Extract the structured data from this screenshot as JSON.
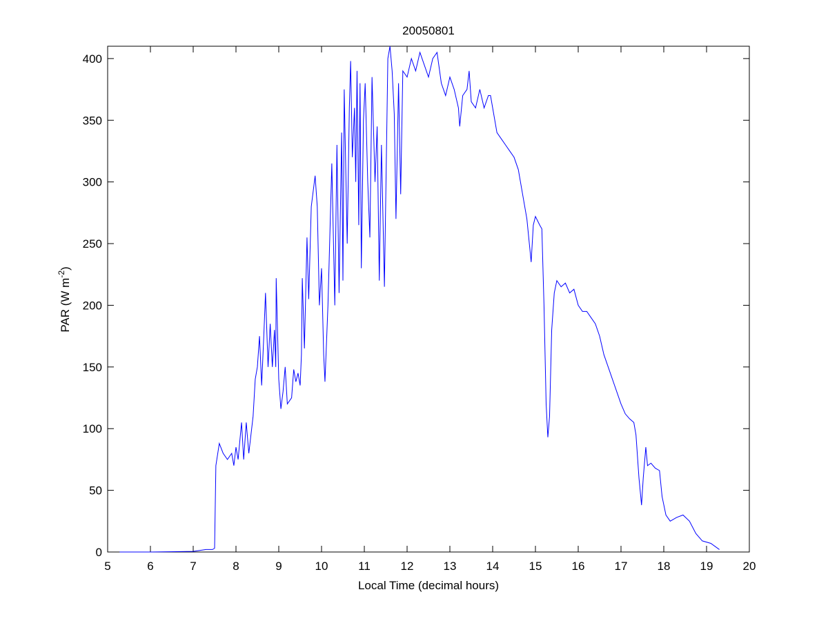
{
  "chart_data": {
    "type": "line",
    "title": "20050801",
    "xlabel": "Local Time (decimal hours)",
    "ylabel": [
      "PAR (W m",
      "-2",
      ")"
    ],
    "xlim": [
      5,
      20
    ],
    "xticks": [
      5,
      6,
      7,
      8,
      9,
      10,
      11,
      12,
      13,
      14,
      15,
      16,
      17,
      18,
      19,
      20
    ],
    "ylim": [
      0,
      410
    ],
    "yticks": [
      0,
      50,
      100,
      150,
      200,
      250,
      300,
      350,
      400
    ],
    "grid": false,
    "series": [
      {
        "color": "#0000ff",
        "x": [
          5.28,
          6.0,
          7.0,
          7.3,
          7.45,
          7.5,
          7.53,
          7.61,
          7.7,
          7.8,
          7.9,
          7.95,
          8.0,
          8.05,
          8.13,
          8.18,
          8.24,
          8.3,
          8.4,
          8.45,
          8.5,
          8.55,
          8.6,
          8.65,
          8.69,
          8.75,
          8.8,
          8.85,
          8.9,
          8.93,
          8.94,
          9.0,
          9.05,
          9.1,
          9.15,
          9.2,
          9.3,
          9.35,
          9.4,
          9.45,
          9.5,
          9.53,
          9.55,
          9.6,
          9.66,
          9.7,
          9.76,
          9.85,
          9.9,
          9.95,
          10.0,
          10.05,
          10.08,
          10.15,
          10.24,
          10.31,
          10.36,
          10.41,
          10.47,
          10.5,
          10.53,
          10.6,
          10.65,
          10.68,
          10.72,
          10.77,
          10.8,
          10.83,
          10.87,
          10.9,
          10.93,
          10.98,
          11.02,
          11.08,
          11.13,
          11.18,
          11.25,
          11.3,
          11.35,
          11.4,
          11.47,
          11.55,
          11.6,
          11.65,
          11.7,
          11.74,
          11.8,
          11.85,
          11.9,
          12.0,
          12.1,
          12.2,
          12.3,
          12.4,
          12.5,
          12.6,
          12.7,
          12.8,
          12.9,
          13.0,
          13.1,
          13.2,
          13.23,
          13.3,
          13.4,
          13.45,
          13.5,
          13.6,
          13.7,
          13.8,
          13.9,
          13.95,
          14.0,
          14.1,
          14.2,
          14.3,
          14.4,
          14.5,
          14.6,
          14.7,
          14.8,
          14.9,
          14.95,
          15.0,
          15.1,
          15.15,
          15.2,
          15.25,
          15.29,
          15.33,
          15.38,
          15.44,
          15.5,
          15.6,
          15.7,
          15.8,
          15.9,
          16.0,
          16.1,
          16.2,
          16.3,
          16.4,
          16.5,
          16.6,
          16.7,
          16.8,
          16.9,
          17.0,
          17.1,
          17.2,
          17.3,
          17.35,
          17.42,
          17.48,
          17.52,
          17.58,
          17.62,
          17.7,
          17.8,
          17.9,
          17.96,
          18.05,
          18.15,
          18.3,
          18.45,
          18.6,
          18.75,
          18.9,
          19.1,
          19.3
        ],
        "values": [
          0,
          0,
          0.5,
          2,
          2,
          3,
          70,
          88,
          80,
          75,
          80,
          70,
          85,
          75,
          105,
          75,
          105,
          80,
          110,
          140,
          150,
          175,
          135,
          175,
          210,
          150,
          185,
          150,
          180,
          150,
          222,
          140,
          116,
          130,
          150,
          120,
          125,
          148,
          138,
          145,
          135,
          160,
          222,
          165,
          255,
          205,
          280,
          305,
          280,
          200,
          230,
          160,
          138,
          200,
          315,
          200,
          330,
          210,
          340,
          220,
          375,
          250,
          360,
          398,
          320,
          360,
          300,
          390,
          265,
          380,
          230,
          350,
          380,
          300,
          255,
          385,
          300,
          345,
          220,
          330,
          215,
          400,
          410,
          390,
          355,
          270,
          380,
          290,
          390,
          385,
          400,
          390,
          405,
          395,
          385,
          400,
          405,
          380,
          370,
          385,
          375,
          360,
          345,
          370,
          375,
          390,
          365,
          360,
          375,
          360,
          370,
          370,
          360,
          340,
          335,
          330,
          325,
          320,
          310,
          290,
          270,
          235,
          265,
          272,
          265,
          262,
          200,
          120,
          93,
          110,
          180,
          210,
          220,
          215,
          218,
          210,
          213,
          200,
          195,
          195,
          190,
          185,
          175,
          160,
          150,
          140,
          130,
          120,
          112,
          108,
          105,
          95,
          60,
          38,
          60,
          85,
          70,
          72,
          68,
          66,
          45,
          30,
          25,
          28,
          30,
          25,
          15,
          9,
          7,
          2
        ]
      }
    ]
  }
}
